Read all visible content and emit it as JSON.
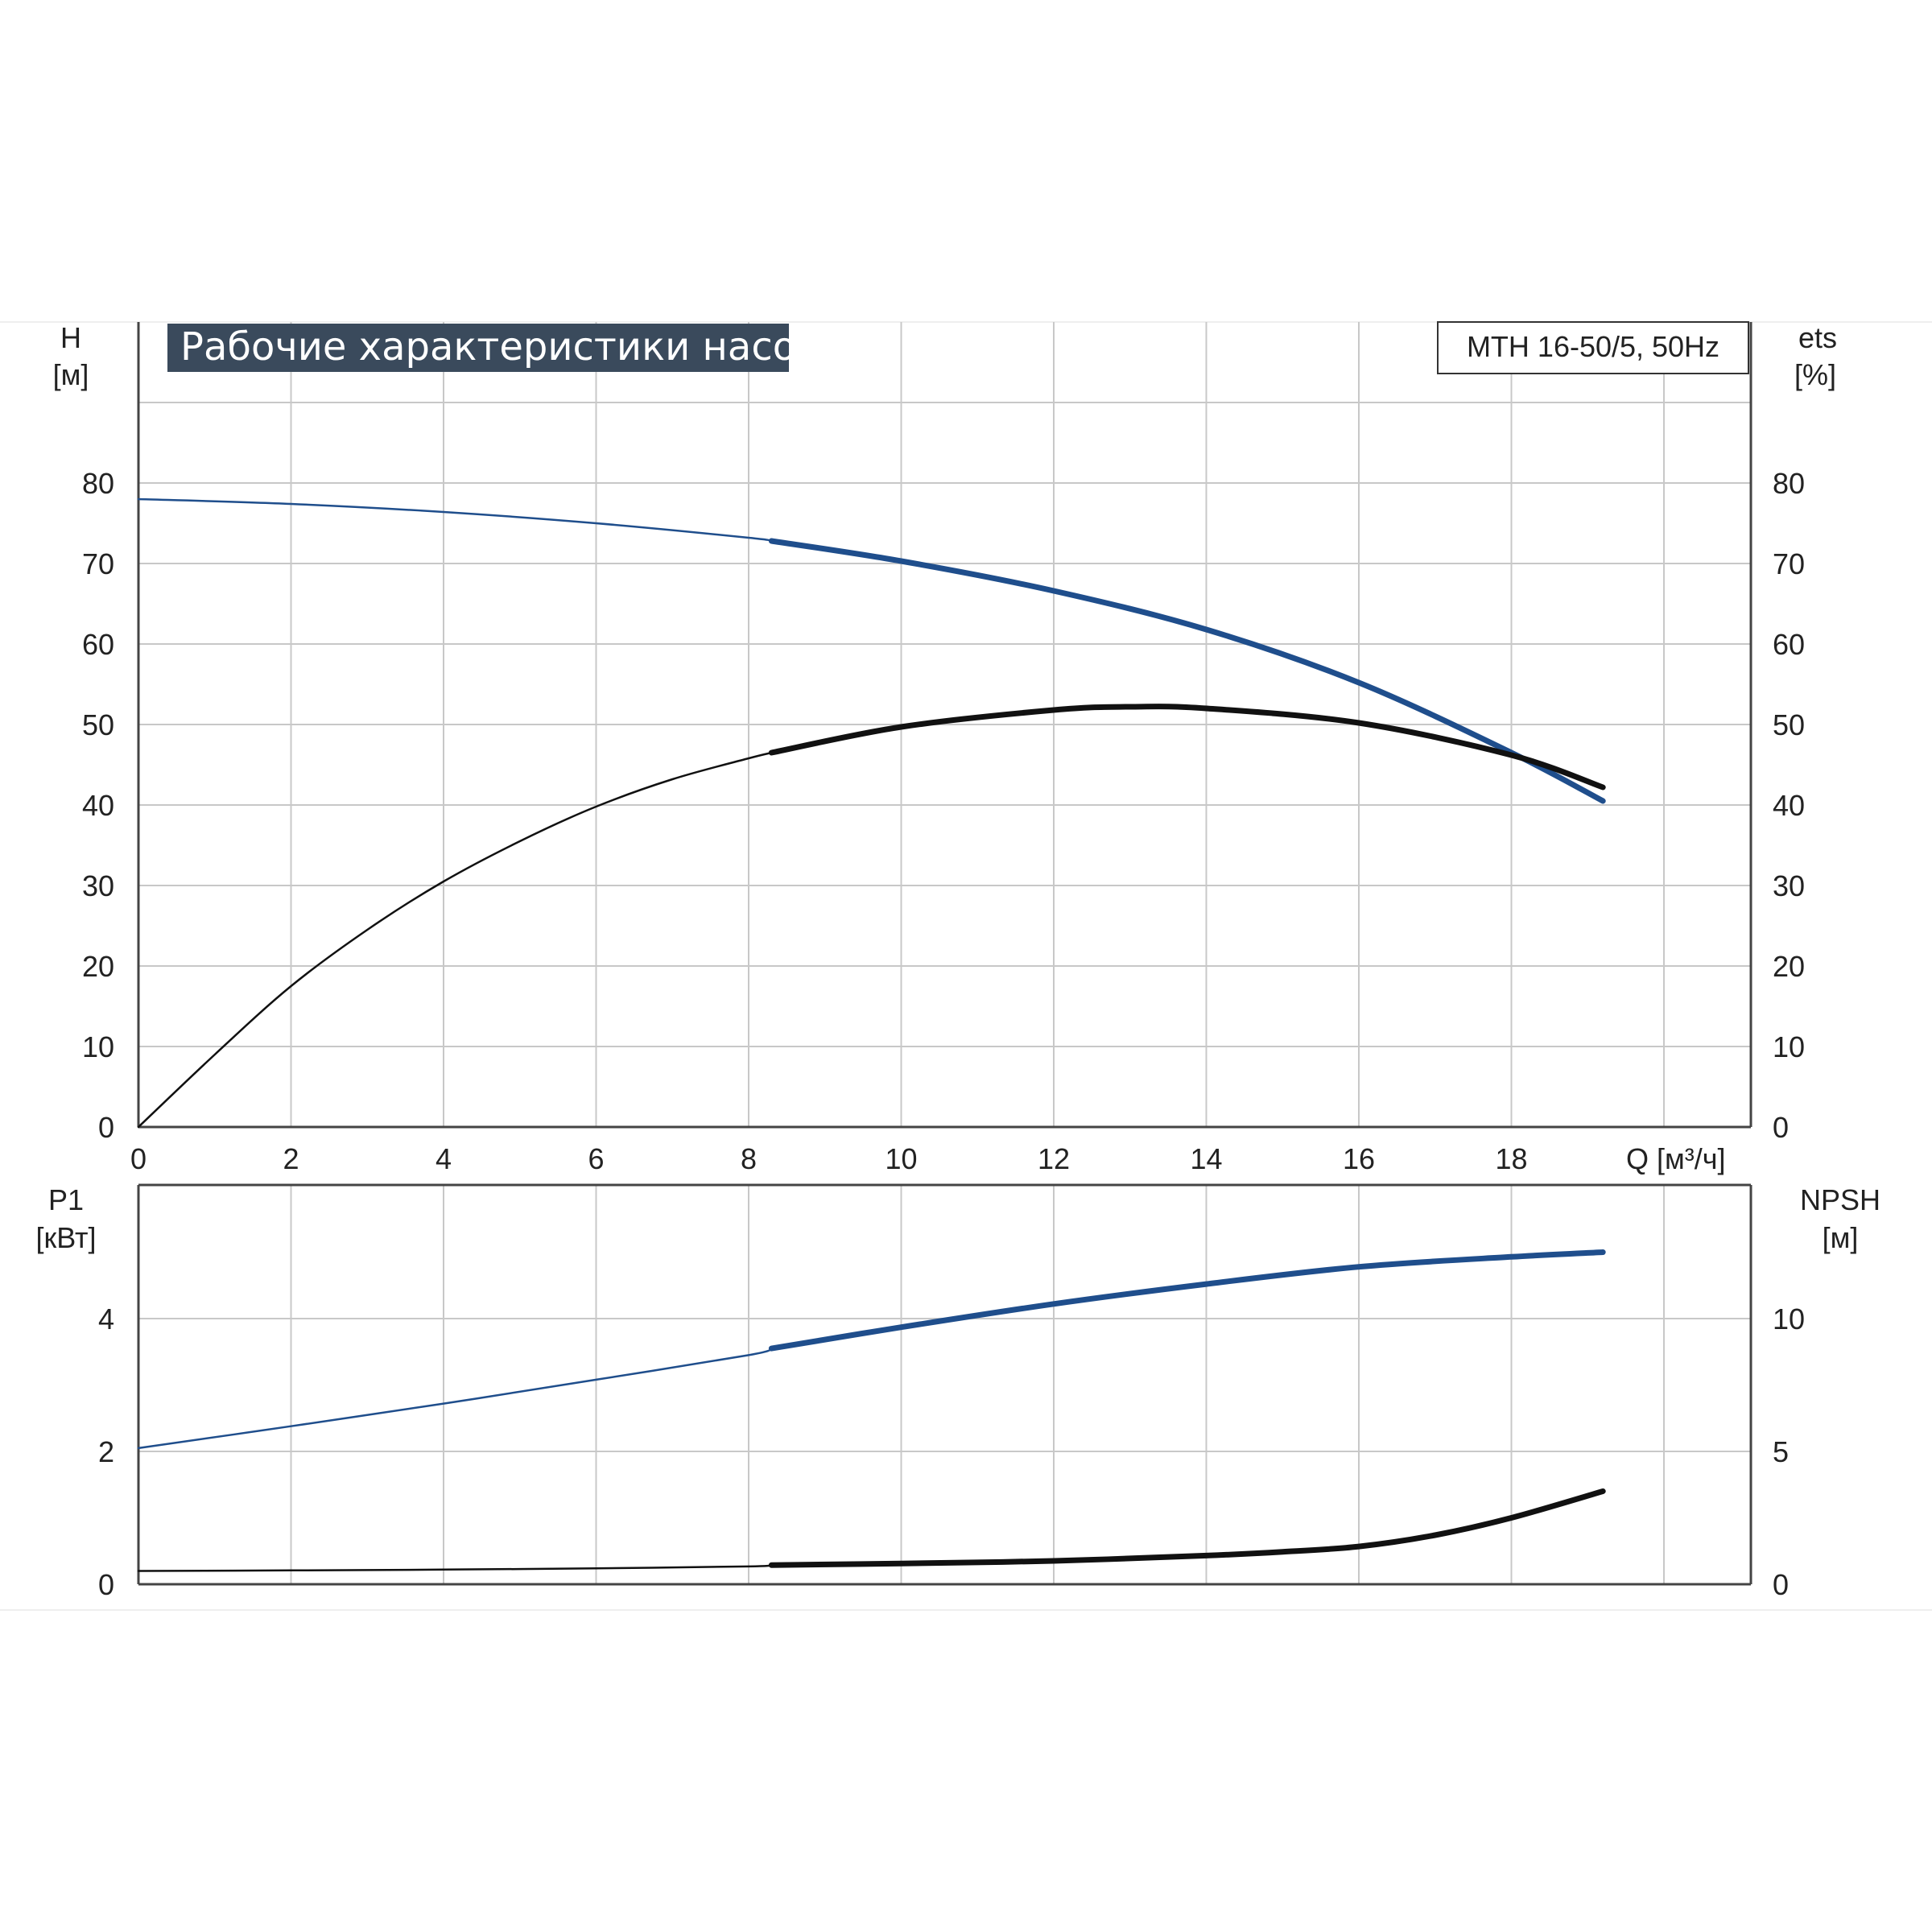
{
  "colors": {
    "grid": "#c8c8c8",
    "axis": "#444444",
    "head_curve": "#1f4e8c",
    "black_curve": "#111111",
    "title_bg": "#3a4a5c",
    "title_fg": "#ffffff"
  },
  "header": {
    "title": "Рабочие характеристики насоса",
    "model": "MTH 16-50/5, 50Hz"
  },
  "chart_data": [
    {
      "type": "line",
      "panel": "top",
      "left_axis": {
        "label_line1": "H",
        "label_line2": "[м]",
        "ylim": [
          0,
          90
        ],
        "ticks": [
          "0",
          "10",
          "20",
          "30",
          "40",
          "50",
          "60",
          "70",
          "80"
        ]
      },
      "right_axis": {
        "label_line1": "ets",
        "label_line2": "[%]",
        "ylim": [
          0,
          90
        ],
        "ticks": [
          "0",
          "10",
          "20",
          "30",
          "40",
          "50",
          "60",
          "70",
          "80"
        ]
      },
      "x_axis": {
        "label": "Q [м³/ч]",
        "xlim": [
          0,
          21
        ],
        "ticks": [
          "0",
          "2",
          "4",
          "6",
          "8",
          "10",
          "12",
          "14",
          "16",
          "18"
        ]
      },
      "grid": true,
      "series": [
        {
          "axis": "left",
          "color": "head_curve",
          "thick_from_x": 8.3,
          "x": [
            0,
            2,
            4,
            6,
            8,
            8.3,
            10,
            12,
            14,
            16,
            18,
            19.2
          ],
          "y": [
            78,
            77.4,
            76.4,
            75,
            73.2,
            72.8,
            70.3,
            66.6,
            61.8,
            55.2,
            46.5,
            40.5
          ]
        },
        {
          "axis": "right",
          "color": "black_curve",
          "thick_from_x": 8.3,
          "x": [
            0,
            1,
            2,
            3,
            4,
            5,
            6,
            7,
            8,
            8.3,
            10,
            12,
            13,
            14,
            16,
            18,
            19.2
          ],
          "y": [
            0,
            9,
            17.5,
            24.5,
            30.5,
            35.5,
            39.8,
            43.2,
            45.8,
            46.5,
            49.7,
            51.8,
            52.2,
            52.0,
            50.2,
            46.2,
            42.2
          ]
        }
      ]
    },
    {
      "type": "line",
      "panel": "bottom",
      "left_axis": {
        "label_line1": "P1",
        "label_line2": "[кВт]",
        "ylim": [
          0,
          6
        ],
        "ticks": [
          "0",
          "2",
          "4"
        ]
      },
      "right_axis": {
        "label_line1": "NPSH",
        "label_line2": "[м]",
        "ylim": [
          0,
          15
        ],
        "ticks": [
          "0",
          "5",
          "10"
        ]
      },
      "x_axis": {
        "xlim": [
          0,
          21
        ]
      },
      "grid": true,
      "series": [
        {
          "axis": "left",
          "color": "head_curve",
          "thick_from_x": 8.3,
          "x": [
            0,
            2,
            4,
            6,
            8,
            8.3,
            10,
            12,
            14,
            16,
            18,
            19.2
          ],
          "y": [
            2.05,
            2.38,
            2.72,
            3.08,
            3.45,
            3.55,
            3.87,
            4.22,
            4.52,
            4.78,
            4.93,
            5.0
          ]
        },
        {
          "axis": "right",
          "color": "black_curve",
          "thick_from_x": 8.3,
          "x": [
            0,
            2,
            4,
            6,
            8,
            8.3,
            10,
            12,
            14,
            15,
            16,
            17,
            18,
            19.2
          ],
          "y": [
            0.5,
            0.52,
            0.55,
            0.6,
            0.67,
            0.72,
            0.78,
            0.88,
            1.08,
            1.22,
            1.42,
            1.85,
            2.5,
            3.5
          ]
        }
      ]
    }
  ]
}
